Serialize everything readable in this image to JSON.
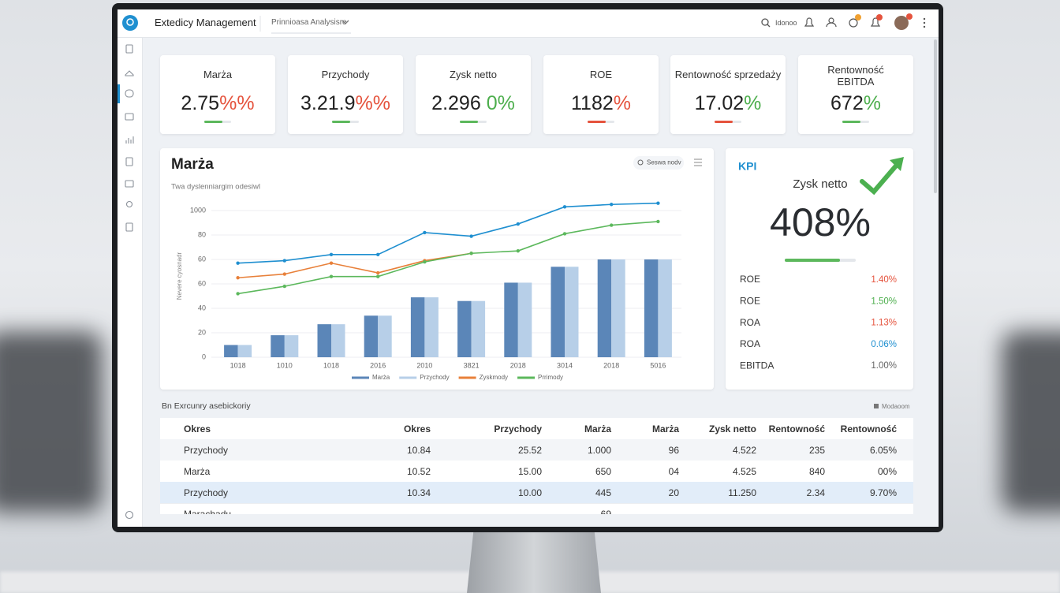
{
  "header": {
    "title": "Extedicy Management",
    "tab": "Prinnioasa Analysisre",
    "search": "Idonoo"
  },
  "kpi_cards": [
    {
      "label": "Marża",
      "value": "2.75",
      "unit": "%%",
      "unit_color": "#e5533d",
      "bar_color": "#5cb85c"
    },
    {
      "label": "Przychody",
      "value": "3.21.9",
      "unit": "%%",
      "unit_color": "#e5533d",
      "bar_color": "#5cb85c"
    },
    {
      "label": "Zysk netto",
      "value": "2.296 ",
      "unit": "0%",
      "unit_color": "#4cae4c",
      "bar_color": "#5cb85c"
    },
    {
      "label": "ROE",
      "value": "1182",
      "unit": "%",
      "unit_color": "#e5533d",
      "bar_color": "#e5533d"
    },
    {
      "label": "Rentowność sprzedaży",
      "value": "17.02",
      "unit": "%",
      "unit_color": "#4cae4c",
      "bar_color": "#e5533d"
    },
    {
      "label": "Rentowność EBITDA",
      "value": "672",
      "unit": "%",
      "unit_color": "#4cae4c",
      "bar_color": "#5cb85c"
    }
  ],
  "chart_data": {
    "type": "bar",
    "title": "Marża",
    "subtitle": "Twa dyslenniargim odesiwl",
    "search": "Seswa nodv",
    "y_label": "Nevere cyosnadr",
    "categories": [
      "1018",
      "1010",
      "1018",
      "2016",
      "2010",
      "3821",
      "2018",
      "3014",
      "2018",
      "5016"
    ],
    "ylim": [
      0,
      130
    ],
    "yticks": [
      0,
      20,
      40,
      60,
      {
        "value": 80,
        "label": "60"
      },
      {
        "value": 100,
        "label": "80"
      },
      {
        "value": 120,
        "label": "1000"
      }
    ],
    "grid": true,
    "series": [
      {
        "name": "Marża",
        "type": "bar",
        "color": "#5b86b8",
        "values": [
          10,
          18,
          27,
          34,
          49,
          46,
          61,
          74,
          80,
          80
        ]
      },
      {
        "name": "Przychody",
        "type": "bar",
        "color": "#b7cfe8",
        "values": [
          10,
          18,
          27,
          34,
          49,
          46,
          61,
          74,
          80,
          80
        ]
      },
      {
        "type": "line",
        "color": "#1f8fd0",
        "values": [
          77,
          79,
          84,
          84,
          102,
          99,
          109,
          123,
          125,
          126
        ]
      },
      {
        "name": "Zyskmody",
        "type": "line",
        "color": "#e8803a",
        "values": [
          65,
          68,
          77,
          69,
          79,
          85,
          null,
          null,
          null,
          null
        ]
      },
      {
        "name": "Prrimody",
        "type": "line",
        "color": "#5cb85c",
        "values": [
          52,
          58,
          66,
          66,
          78,
          85,
          87,
          101,
          108,
          111
        ]
      }
    ]
  },
  "kpi_panel": {
    "title": "KPI",
    "label": "Zysk netto",
    "value": "408%",
    "rows": [
      {
        "label": "ROE",
        "value": "1.40%",
        "color": "#e5533d"
      },
      {
        "label": "ROE",
        "value": "1.50%",
        "color": "#4cae4c"
      },
      {
        "label": "ROA",
        "value": "1.13%",
        "color": "#e5533d"
      },
      {
        "label": "ROA",
        "value": "0.06%",
        "color": "#1f8fd0"
      },
      {
        "label": "EBITDA",
        "value": "1.00%",
        "color": "#666666"
      }
    ]
  },
  "table": {
    "caption": "Bn Exrcunry asebickoriy",
    "action": "Modaoom",
    "columns": [
      "Okres",
      "Okres",
      "Przychody",
      "Marża",
      "Marża",
      "Zysk netto",
      "Rentowność",
      "Rentowność"
    ],
    "rows": [
      [
        "Przychody",
        "10.84",
        "25.52",
        "1.000",
        "96",
        "4.522",
        "235",
        "6.05%"
      ],
      [
        "Marża",
        "10.52",
        "15.00",
        "650",
        "04",
        "4.525",
        "840",
        "00%"
      ],
      [
        "Przychody",
        "10.34",
        "10.00",
        "445",
        "20",
        "11.250",
        "2.34",
        "9.70%"
      ]
    ],
    "partial_row": {
      "okres": "Marachadu",
      "marza": "69"
    }
  }
}
